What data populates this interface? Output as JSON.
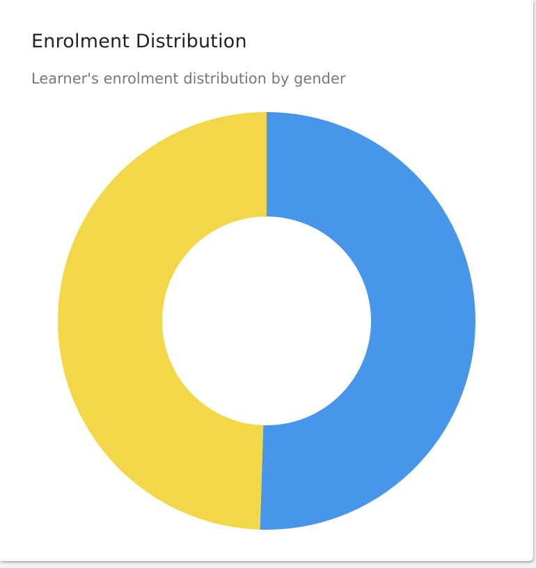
{
  "card": {
    "title": "Enrolment Distribution",
    "subtitle": "Learner's enrolment distribution by gender"
  },
  "chart_data": {
    "type": "pie",
    "variant": "donut",
    "title": "Enrolment Distribution",
    "subtitle": "Learner's enrolment distribution by gender",
    "values": [
      50.5,
      49.5
    ],
    "colors": [
      "#4796EA",
      "#F2D848"
    ],
    "start_angle": "top",
    "direction": "clockwise",
    "legend": "none",
    "data_labels": false
  }
}
